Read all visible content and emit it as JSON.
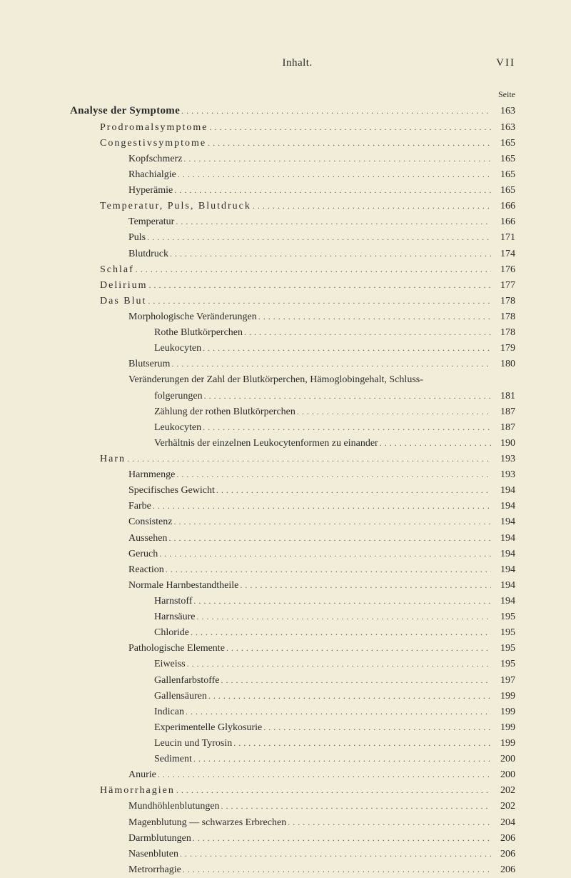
{
  "header": {
    "center": "Inhalt.",
    "right": "VII",
    "page_label": "Seite"
  },
  "toc": [
    {
      "level": 0,
      "bold": true,
      "label": "Analyse der Symptome",
      "page": "163"
    },
    {
      "level": 1,
      "bold": false,
      "label": "Prodromalsymptome",
      "page": "163"
    },
    {
      "level": 1,
      "bold": false,
      "label": "Congestivsymptome",
      "page": "165"
    },
    {
      "level": 2,
      "bold": false,
      "label": "Kopfschmerz",
      "page": "165"
    },
    {
      "level": 2,
      "bold": false,
      "label": "Rhachialgie",
      "page": "165"
    },
    {
      "level": 2,
      "bold": false,
      "label": "Hyperämie",
      "page": "165"
    },
    {
      "level": 1,
      "bold": false,
      "label": "Temperatur, Puls, Blutdruck",
      "page": "166"
    },
    {
      "level": 2,
      "bold": false,
      "label": "Temperatur",
      "page": "166"
    },
    {
      "level": 2,
      "bold": false,
      "label": "Puls",
      "page": "171"
    },
    {
      "level": 2,
      "bold": false,
      "label": "Blutdruck",
      "page": "174"
    },
    {
      "level": 1,
      "bold": false,
      "label": "Schlaf",
      "page": "176"
    },
    {
      "level": 1,
      "bold": false,
      "label": "Delirium",
      "page": "177"
    },
    {
      "level": 1,
      "bold": false,
      "label": "Das Blut",
      "page": "178"
    },
    {
      "level": 2,
      "bold": false,
      "label": "Morphologische Veränderungen",
      "page": "178"
    },
    {
      "level": 3,
      "bold": false,
      "label": "Rothe Blutkörperchen",
      "page": "178"
    },
    {
      "level": 3,
      "bold": false,
      "label": "Leukocyten",
      "page": "179"
    },
    {
      "level": 2,
      "bold": false,
      "label": "Blutserum",
      "page": "180"
    },
    {
      "level": 2,
      "bold": false,
      "label": "Veränderungen der Zahl der Blutkörperchen, Hämoglobingehalt, Schluss-",
      "page": "",
      "nodots": true
    },
    {
      "level": 3,
      "bold": false,
      "label": "folgerungen",
      "page": "181"
    },
    {
      "level": 3,
      "bold": false,
      "label": "Zählung der rothen Blutkörperchen",
      "page": "187"
    },
    {
      "level": 3,
      "bold": false,
      "label": "Leukocyten",
      "page": "187"
    },
    {
      "level": 3,
      "bold": false,
      "label": "Verhältnis der einzelnen Leukocytenformen zu einander",
      "page": "190"
    },
    {
      "level": 1,
      "bold": false,
      "label": "Harn",
      "page": "193"
    },
    {
      "level": 2,
      "bold": false,
      "label": "Harnmenge",
      "page": "193"
    },
    {
      "level": 2,
      "bold": false,
      "label": "Specifisches Gewicht",
      "page": "194"
    },
    {
      "level": 2,
      "bold": false,
      "label": "Farbe",
      "page": "194"
    },
    {
      "level": 2,
      "bold": false,
      "label": "Consistenz",
      "page": "194"
    },
    {
      "level": 2,
      "bold": false,
      "label": "Aussehen",
      "page": "194"
    },
    {
      "level": 2,
      "bold": false,
      "label": "Geruch",
      "page": "194"
    },
    {
      "level": 2,
      "bold": false,
      "label": "Reaction",
      "page": "194"
    },
    {
      "level": 2,
      "bold": false,
      "label": "Normale Harnbestandtheile",
      "page": "194"
    },
    {
      "level": 3,
      "bold": false,
      "label": "Harnstoff",
      "page": "194"
    },
    {
      "level": 3,
      "bold": false,
      "label": "Harnsäure",
      "page": "195"
    },
    {
      "level": 3,
      "bold": false,
      "label": "Chloride",
      "page": "195"
    },
    {
      "level": 2,
      "bold": false,
      "label": "Pathologische Elemente",
      "page": "195"
    },
    {
      "level": 3,
      "bold": false,
      "label": "Eiweiss",
      "page": "195"
    },
    {
      "level": 3,
      "bold": false,
      "label": "Gallenfarbstoffe",
      "page": "197"
    },
    {
      "level": 3,
      "bold": false,
      "label": "Gallensäuren",
      "page": "199"
    },
    {
      "level": 3,
      "bold": false,
      "label": "Indican",
      "page": "199"
    },
    {
      "level": 3,
      "bold": false,
      "label": "Experimentelle Glykosurie",
      "page": "199"
    },
    {
      "level": 3,
      "bold": false,
      "label": "Leucin und Tyrosin",
      "page": "199"
    },
    {
      "level": 3,
      "bold": false,
      "label": "Sediment",
      "page": "200"
    },
    {
      "level": 2,
      "bold": false,
      "label": "Anurie",
      "page": "200"
    },
    {
      "level": 1,
      "bold": false,
      "label": "Hämorrhagien",
      "page": "202"
    },
    {
      "level": 2,
      "bold": false,
      "label": "Mundhöhlenblutungen",
      "page": "202"
    },
    {
      "level": 2,
      "bold": false,
      "label": "Magenblutung — schwarzes Erbrechen",
      "page": "204"
    },
    {
      "level": 2,
      "bold": false,
      "label": "Darmblutungen",
      "page": "206"
    },
    {
      "level": 2,
      "bold": false,
      "label": "Nasenbluten",
      "page": "206"
    },
    {
      "level": 2,
      "bold": false,
      "label": "Metrorrhagie",
      "page": "206"
    }
  ]
}
